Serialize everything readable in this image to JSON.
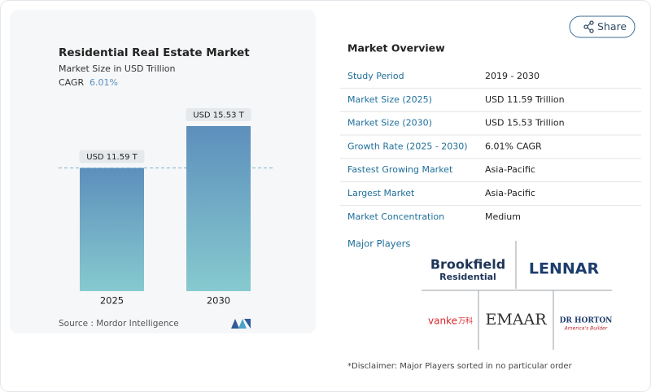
{
  "share": "Share",
  "chart_data": {
    "type": "bar",
    "title": "Residential Real Estate Market",
    "subtitle": "Market Size in USD Trillion",
    "cagr_label": "CAGR",
    "cagr_value": "6.01%",
    "categories": [
      "2025",
      "2030"
    ],
    "values": [
      11.59,
      15.53
    ],
    "value_labels": [
      "USD 11.59 T",
      "USD 15.53 T"
    ],
    "gradient": [
      "#5d8fbc",
      "#86cacf"
    ],
    "source": "Source : Mordor Intelligence"
  },
  "overview": {
    "title": "Market Overview",
    "rows": [
      [
        "Study Period",
        "2019 - 2030"
      ],
      [
        "Market Size (2025)",
        "USD 11.59 Trillion"
      ],
      [
        "Market Size (2030)",
        "USD 15.53 Trillion"
      ],
      [
        "Growth Rate (2025 - 2030)",
        "6.01% CAGR"
      ],
      [
        "Fastest Growing Market",
        "Asia-Pacific"
      ],
      [
        "Largest Market",
        "Asia-Pacific"
      ],
      [
        "Market Concentration",
        "Medium"
      ]
    ]
  },
  "players": {
    "title": "Major Players",
    "logos": [
      "Brookfield",
      "Residential",
      "LENNAR",
      "vanke",
      "万科",
      "EMAAR",
      "DR HORTON",
      "America's Builder"
    ]
  },
  "disclaimer": "*Disclaimer: Major Players sorted in no particular order"
}
